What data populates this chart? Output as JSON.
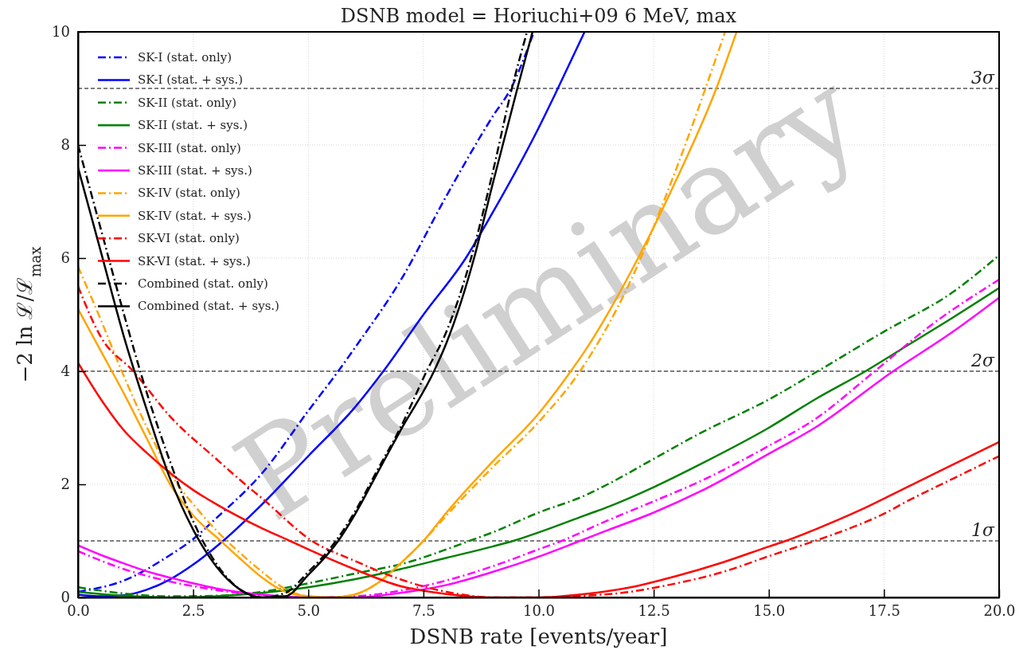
{
  "chart_data": {
    "type": "line",
    "title": "DSNB model = Horiuchi+09 6 MeV, max",
    "xlabel": "DSNB rate [events/year]",
    "ylabel": "−2 ln ℒ/ℒ$_{max}$",
    "xlim": [
      0,
      20
    ],
    "ylim": [
      0,
      10
    ],
    "xticks": [
      {
        "value": 0,
        "label": "0.0"
      },
      {
        "value": 2.5,
        "label": "2.5"
      },
      {
        "value": 5,
        "label": "5.0"
      },
      {
        "value": 7.5,
        "label": "7.5"
      },
      {
        "value": 10,
        "label": "10.0"
      },
      {
        "value": 12.5,
        "label": "12.5"
      },
      {
        "value": 15,
        "label": "15.0"
      },
      {
        "value": 17.5,
        "label": "17.5"
      },
      {
        "value": 20,
        "label": "20.0"
      }
    ],
    "yticks": [
      0,
      2,
      4,
      6,
      8,
      10
    ],
    "grid": true,
    "legend": "top left",
    "marker": "none",
    "annotations": [
      "Preliminary"
    ],
    "ref_lines": [
      {
        "axis": "y",
        "value": 1,
        "label": "1σ",
        "color": "#000000",
        "line_style": "dashed"
      },
      {
        "axis": "y",
        "value": 4,
        "label": "2σ",
        "color": "#000000",
        "line_style": "dashed"
      },
      {
        "axis": "y",
        "value": 9,
        "label": "3σ",
        "color": "#000000",
        "line_style": "dashed"
      }
    ],
    "series": [
      {
        "name": "SK-I (stat. only)",
        "color": "#0000ff",
        "line_style": "dashed",
        "x": [
          0,
          1,
          2,
          2.45,
          3,
          4,
          5,
          5.65,
          6,
          7,
          8,
          9,
          9.4,
          9.9
        ],
        "values": [
          0.1,
          0.3,
          0.75,
          1,
          1.4,
          2.2,
          3.3,
          4,
          4.4,
          5.6,
          7.1,
          8.5,
          9,
          10
        ]
      },
      {
        "name": "SK-I (stat. + sys.)",
        "color": "#0000ff",
        "line_style": "solid",
        "x": [
          0,
          0.5,
          1,
          1.5,
          2,
          2.5,
          3.15,
          4,
          5,
          6,
          6.63,
          7.5,
          8.42,
          9,
          10,
          10.39,
          11
        ],
        "values": [
          0.05,
          0.02,
          0.04,
          0.14,
          0.32,
          0.58,
          1,
          1.65,
          2.5,
          3.35,
          4,
          5,
          6,
          6.8,
          8.3,
          8.95,
          10
        ]
      },
      {
        "name": "SK-II (stat. only)",
        "color": "#008000",
        "line_style": "dashed",
        "x": [
          0,
          1,
          2,
          3,
          4,
          5,
          6,
          7.2,
          8,
          8.5,
          9,
          10,
          11,
          11.5,
          12.5,
          13.5,
          15,
          16.06,
          17.5,
          19,
          20
        ],
        "values": [
          0.18,
          0.07,
          0.02,
          0.03,
          0.1,
          0.25,
          0.42,
          0.63,
          0.85,
          1,
          1.15,
          1.5,
          1.8,
          2,
          2.45,
          2.9,
          3.5,
          4,
          4.7,
          5.4,
          6.05
        ]
      },
      {
        "name": "SK-II (stat. + sys.)",
        "color": "#008000",
        "line_style": "solid",
        "x": [
          0,
          1,
          2,
          3,
          4,
          5,
          6,
          7,
          8,
          9,
          9.45,
          10,
          11,
          11.44,
          12.5,
          13.5,
          15,
          16,
          17.1,
          18,
          19,
          20
        ],
        "values": [
          0.1,
          0.03,
          0,
          0.02,
          0.08,
          0.18,
          0.32,
          0.5,
          0.7,
          0.9,
          1,
          1.15,
          1.45,
          1.58,
          1.95,
          2.35,
          3,
          3.5,
          4,
          4.45,
          4.95,
          5.47
        ]
      },
      {
        "name": "SK-III (stat. only)",
        "color": "#ff00ff",
        "line_style": "dashed",
        "x": [
          0,
          0.5,
          1,
          1.5,
          2,
          2.5,
          3,
          4,
          5,
          6,
          7,
          8,
          9,
          10,
          10.5,
          11.44,
          12.5,
          13.5,
          15,
          16,
          17.3,
          18.5,
          20
        ],
        "values": [
          0.82,
          0.65,
          0.5,
          0.38,
          0.28,
          0.2,
          0.13,
          0.04,
          0,
          0.02,
          0.12,
          0.3,
          0.55,
          0.85,
          1,
          1.34,
          1.7,
          2.05,
          2.68,
          3.15,
          4,
          4.8,
          5.62
        ]
      },
      {
        "name": "SK-III (stat. + sys.)",
        "color": "#ff00ff",
        "line_style": "solid",
        "x": [
          0,
          0.5,
          1,
          1.5,
          2,
          2.5,
          3,
          4,
          5,
          6,
          7,
          8,
          9,
          10,
          10.9,
          11.44,
          12.5,
          13.5,
          15,
          16,
          17.7,
          19,
          20
        ],
        "values": [
          0.92,
          0.75,
          0.6,
          0.46,
          0.35,
          0.25,
          0.16,
          0.05,
          0,
          0,
          0.08,
          0.22,
          0.45,
          0.72,
          1,
          1.17,
          1.5,
          1.87,
          2.54,
          3,
          4,
          4.7,
          5.3
        ]
      },
      {
        "name": "SK-IV (stat. only)",
        "color": "#ffa500",
        "line_style": "dashed",
        "x": [
          0,
          0.5,
          0.95,
          1.5,
          2.16,
          2.5,
          3.23,
          3.5,
          4,
          4.5,
          5,
          5.5,
          6,
          6.5,
          7,
          7.5,
          8,
          9,
          10,
          10.9,
          12,
          13,
          14.05
        ],
        "values": [
          5.85,
          4.9,
          4,
          3,
          2,
          1.65,
          1,
          0.8,
          0.45,
          0.15,
          0.02,
          0,
          0.05,
          0.25,
          0.6,
          1,
          1.45,
          2.3,
          3.1,
          4,
          5.6,
          7.6,
          10
        ]
      },
      {
        "name": "SK-IV (stat. + sys.)",
        "color": "#ffa500",
        "line_style": "solid",
        "x": [
          0,
          0.5,
          1,
          1.5,
          2,
          2.5,
          3.1,
          3.5,
          4,
          4.5,
          5,
          5.5,
          6,
          6.5,
          7,
          7.5,
          8,
          9,
          10,
          10.7,
          11,
          12,
          13,
          13.86,
          14.3
        ],
        "values": [
          5.1,
          4.35,
          3.6,
          2.8,
          2,
          1.45,
          1,
          0.7,
          0.35,
          0.1,
          0.02,
          0,
          0.05,
          0.25,
          0.6,
          1,
          1.5,
          2.4,
          3.25,
          4,
          4.35,
          5.75,
          7.4,
          9,
          10
        ]
      },
      {
        "name": "SK-VI (stat. only)",
        "color": "#ff0000",
        "line_style": "dashed",
        "x": [
          0,
          0.5,
          1.2,
          2,
          3,
          3.63,
          4,
          5.08,
          6,
          7,
          8,
          9,
          10,
          11,
          12,
          12.5,
          13,
          14,
          15,
          16,
          17,
          17.5,
          18,
          19,
          20
        ],
        "values": [
          5.5,
          4.6,
          4,
          3.2,
          2.45,
          2,
          1.75,
          1,
          0.65,
          0.32,
          0.1,
          0,
          0,
          0.03,
          0.1,
          0.17,
          0.25,
          0.45,
          0.73,
          1,
          1.3,
          1.48,
          1.7,
          2.1,
          2.5
        ]
      },
      {
        "name": "SK-VI (stat. + sys.)",
        "color": "#ff0000",
        "line_style": "solid",
        "x": [
          0,
          0.5,
          1,
          1.5,
          2,
          2.5,
          3,
          4,
          4.6,
          5,
          6,
          7,
          8,
          9,
          10,
          11,
          12,
          13,
          14,
          15,
          15.37,
          16,
          17,
          18,
          19,
          20
        ],
        "values": [
          4.15,
          3.5,
          2.95,
          2.55,
          2.2,
          1.9,
          1.65,
          1.22,
          1,
          0.85,
          0.5,
          0.2,
          0.06,
          0,
          0,
          0.06,
          0.18,
          0.38,
          0.62,
          0.9,
          1,
          1.2,
          1.55,
          1.95,
          2.35,
          2.75
        ]
      },
      {
        "name": "Combined (stat. only)",
        "color": "#000000",
        "line_style": "dashed",
        "x": [
          0,
          0.5,
          1,
          1.5,
          2,
          2.5,
          3,
          3.5,
          4,
          4.5,
          5,
          5.6,
          6,
          6.5,
          7,
          7.57,
          8,
          8.5,
          9,
          9.42,
          9.75
        ],
        "values": [
          8,
          6.5,
          5,
          3.6,
          2.4,
          1.35,
          0.6,
          0.15,
          0,
          0.08,
          0.45,
          1,
          1.5,
          2.25,
          3,
          4,
          4.7,
          5.9,
          7.5,
          9,
          10
        ]
      },
      {
        "name": "Combined (stat. + sys.)",
        "color": "#000000",
        "line_style": "solid",
        "x": [
          0,
          0.5,
          1,
          1.5,
          2,
          2.5,
          3,
          3.5,
          4,
          4.5,
          5,
          5.65,
          6,
          6.5,
          7,
          7.73,
          8,
          8.6,
          9,
          9.54,
          9.87
        ],
        "values": [
          7.6,
          6.1,
          4.6,
          3.3,
          2.1,
          1.2,
          0.55,
          0.15,
          0,
          0.02,
          0.4,
          1,
          1.45,
          2.2,
          2.95,
          4,
          4.5,
          6,
          7.3,
          9,
          10
        ]
      }
    ]
  }
}
